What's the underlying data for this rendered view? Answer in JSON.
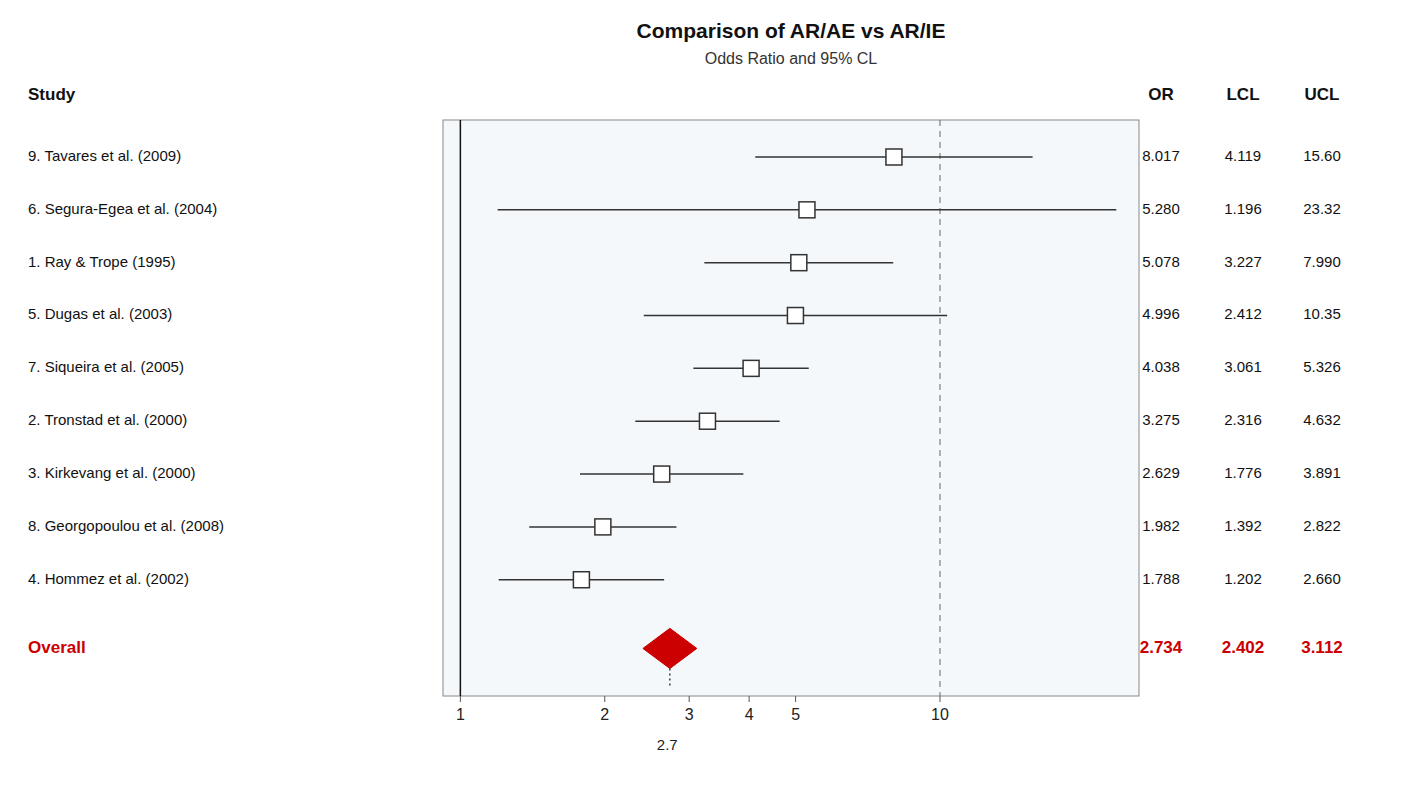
{
  "chart_data": {
    "type": "forest",
    "title": "Comparison of AR/AE vs AR/IE",
    "subtitle": "Odds Ratio and 95% CL",
    "y_label": "Study",
    "categories": [
      "9. Tavares et al. (2009)",
      "6. Segura-Egea et al. (2004)",
      "1. Ray & Trope (1995)",
      "5. Dugas et al. (2003)",
      "7. Siqueira et al. (2005)",
      "2. Tronstad et al. (2000)",
      "3. Kirkevang et al. (2000)",
      "8. Georgopoulou et al. (2008)",
      "4. Hommez et al. (2002)"
    ],
    "series": [
      {
        "name": "OR",
        "values": [
          8.017,
          5.28,
          5.078,
          4.996,
          4.038,
          3.275,
          2.629,
          1.982,
          1.788
        ],
        "value_labels": [
          "8.017",
          "5.280",
          "5.078",
          "4.996",
          "4.038",
          "3.275",
          "2.629",
          "1.982",
          "1.788"
        ]
      },
      {
        "name": "LCL",
        "values": [
          4.119,
          1.196,
          3.227,
          2.412,
          3.061,
          2.316,
          1.776,
          1.392,
          1.202
        ],
        "value_labels": [
          "4.119",
          "1.196",
          "3.227",
          "2.412",
          "3.061",
          "2.316",
          "1.776",
          "1.392",
          "1.202"
        ]
      },
      {
        "name": "UCL",
        "values": [
          15.6,
          23.32,
          7.99,
          10.35,
          5.326,
          4.632,
          3.891,
          2.822,
          2.66
        ],
        "value_labels": [
          "15.60",
          "23.32",
          "7.990",
          "10.35",
          "5.326",
          "4.632",
          "3.891",
          "2.822",
          "2.660"
        ]
      }
    ],
    "overall": {
      "name": "Overall",
      "color": "#cc0000",
      "values": [
        2.734,
        2.402,
        3.112
      ]
    },
    "log": "x",
    "xlim": [
      0.92,
      26
    ],
    "xticks": [
      1,
      2,
      3,
      4,
      5,
      10
    ],
    "reference_lines": [
      {
        "value": 1,
        "line_style": "solid"
      },
      {
        "value": 10,
        "line_style": "dashed"
      }
    ],
    "annotations": [
      {
        "text": "2.7",
        "x": 2.7
      }
    ],
    "grid": false,
    "data_labels": true
  }
}
